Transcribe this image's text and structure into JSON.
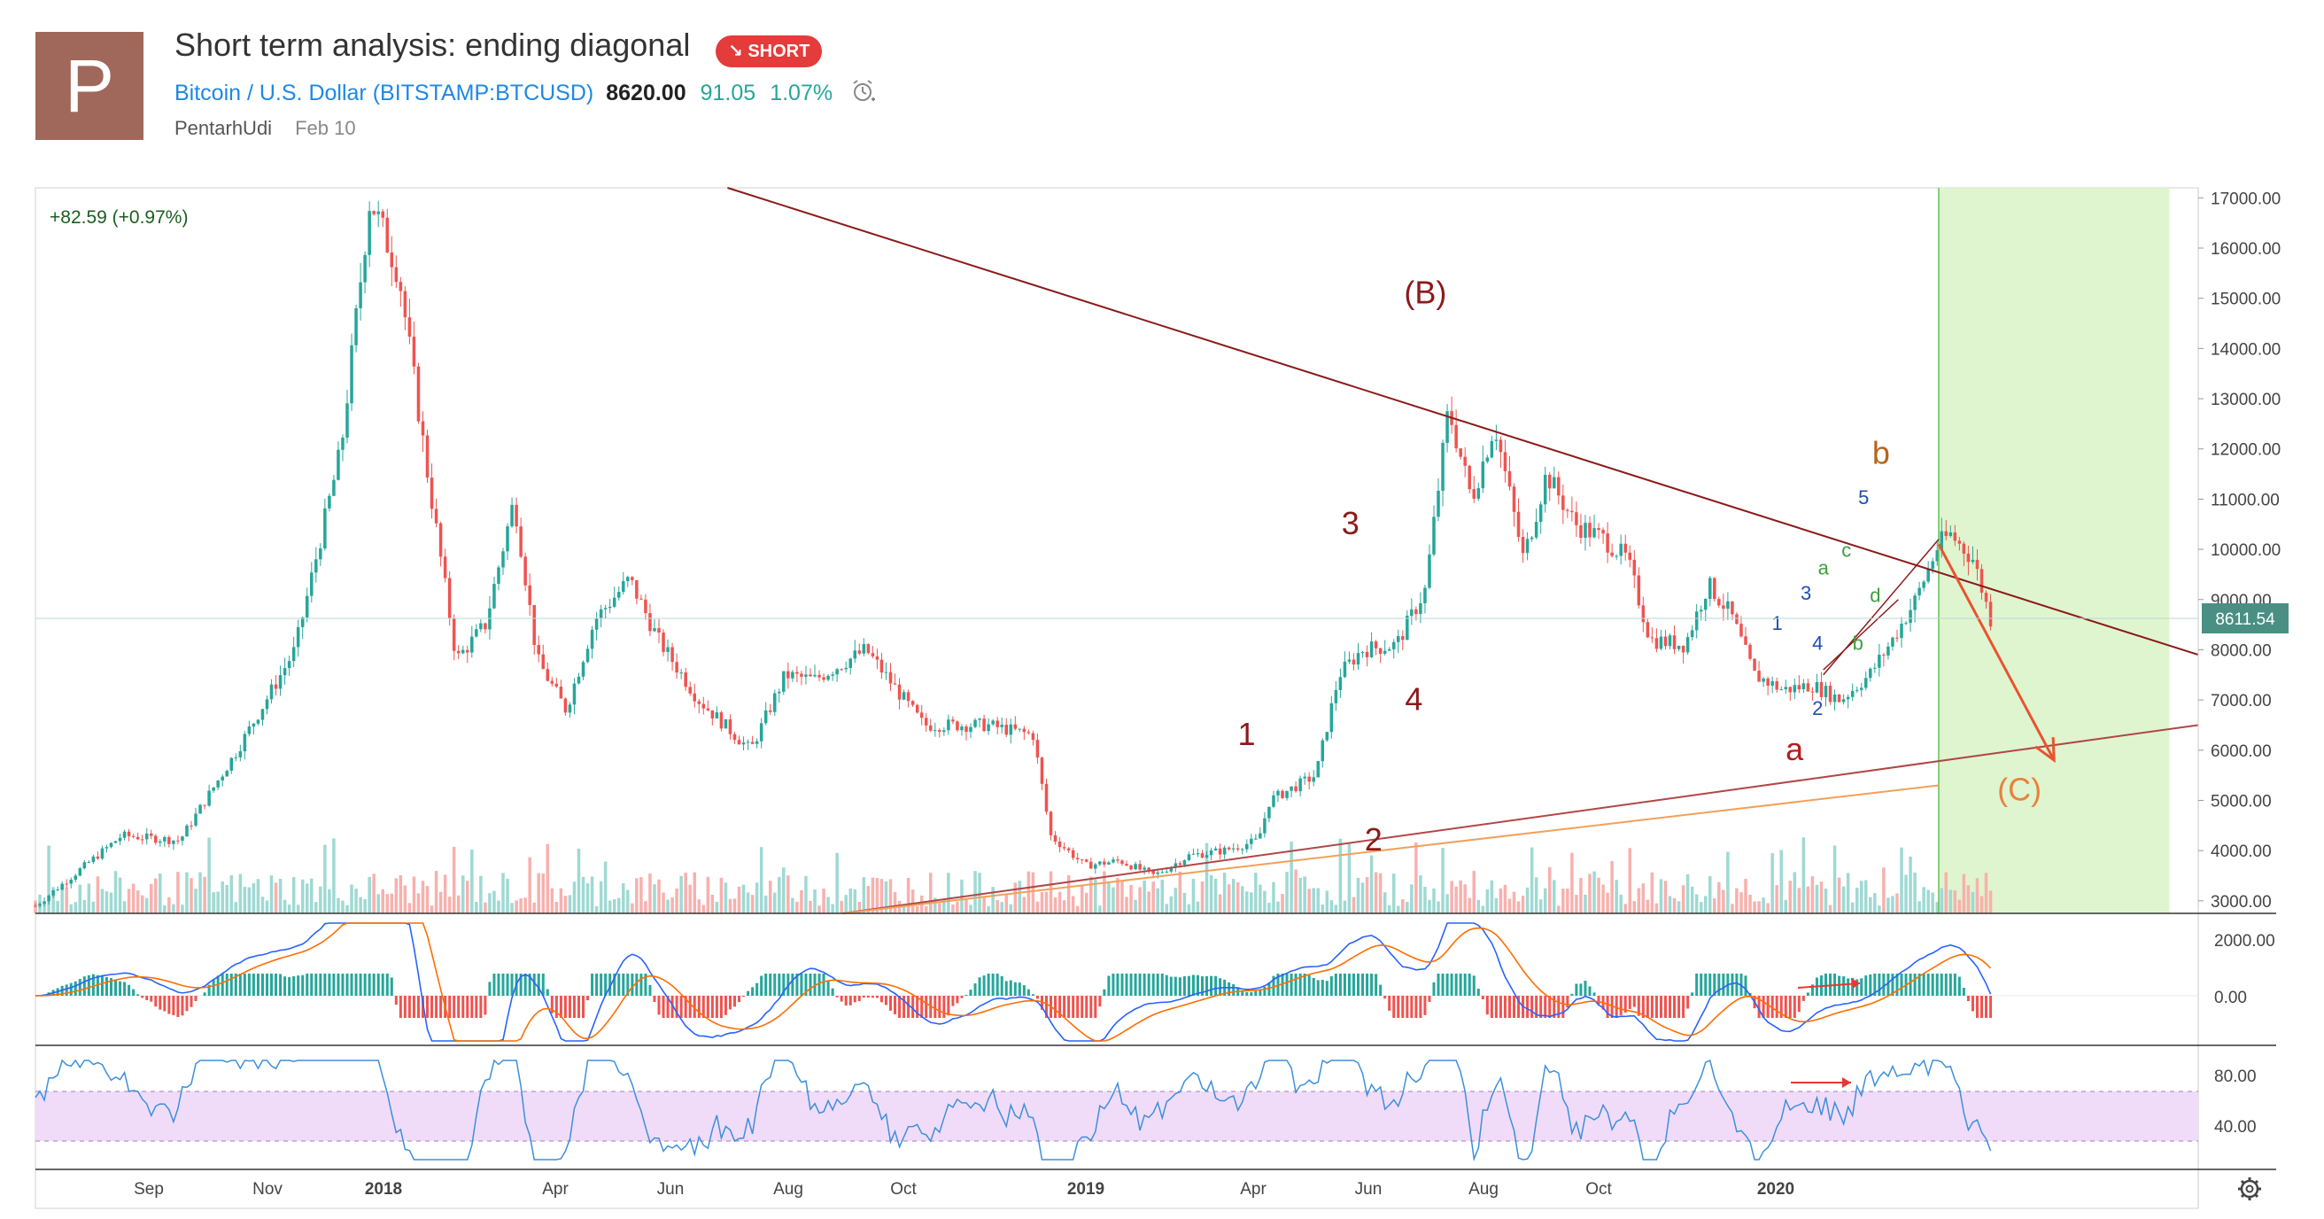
{
  "idea": {
    "avatar_letter": "P",
    "title": "Short term analysis: ending diagonal",
    "badge": "SHORT",
    "badge_icon": "arrow-down-right-icon",
    "symbol_name": "Bitcoin / U.S. Dollar",
    "symbol_code": "(BITSTAMP:BTCUSD)",
    "price": "8620.00",
    "change": "91.05",
    "change_pct": "1.07%",
    "author": "PentarhUdi",
    "date": "Feb 10"
  },
  "chart_data": {
    "type": "candlestick",
    "legend_value": "+82.59 (+0.97%)",
    "last_price_label": "8611.54",
    "last_price": 8611.54,
    "price_axis": [
      "17000.00",
      "16000.00",
      "15000.00",
      "14000.00",
      "13000.00",
      "12000.00",
      "11000.00",
      "10000.00",
      "9000.00",
      "8000.00",
      "7000.00",
      "6000.00",
      "5000.00",
      "4000.00",
      "3000.00"
    ],
    "ylim": [
      2750,
      17200
    ],
    "time_axis": [
      "Sep",
      "Nov",
      "2018",
      "Apr",
      "Jun",
      "Aug",
      "Oct",
      "2019",
      "Apr",
      "Jun",
      "Aug",
      "Oct",
      "2020"
    ],
    "price_path": [
      {
        "t": 0.0,
        "p": 2900
      },
      {
        "t": 1.5,
        "p": 4300
      },
      {
        "t": 2.5,
        "p": 4200
      },
      {
        "t": 3.5,
        "p": 6000
      },
      {
        "t": 4.5,
        "p": 8000
      },
      {
        "t": 5.3,
        "p": 12000
      },
      {
        "t": 5.8,
        "p": 17000
      },
      {
        "t": 6.3,
        "p": 15500
      },
      {
        "t": 6.8,
        "p": 11500
      },
      {
        "t": 7.3,
        "p": 7800
      },
      {
        "t": 7.8,
        "p": 8500
      },
      {
        "t": 8.3,
        "p": 11000
      },
      {
        "t": 8.7,
        "p": 7800
      },
      {
        "t": 9.2,
        "p": 6800
      },
      {
        "t": 9.7,
        "p": 8600
      },
      {
        "t": 10.3,
        "p": 9400
      },
      {
        "t": 10.8,
        "p": 8200
      },
      {
        "t": 11.5,
        "p": 7000
      },
      {
        "t": 12.4,
        "p": 6000
      },
      {
        "t": 13.0,
        "p": 7500
      },
      {
        "t": 13.5,
        "p": 7400
      },
      {
        "t": 14.4,
        "p": 8000
      },
      {
        "t": 15.4,
        "p": 6500
      },
      {
        "t": 16.5,
        "p": 6500
      },
      {
        "t": 17.3,
        "p": 6300
      },
      {
        "t": 17.6,
        "p": 4300
      },
      {
        "t": 18.2,
        "p": 3700
      },
      {
        "t": 18.8,
        "p": 3800
      },
      {
        "t": 19.4,
        "p": 3500
      },
      {
        "t": 20.0,
        "p": 3900
      },
      {
        "t": 20.6,
        "p": 4000
      },
      {
        "t": 21.2,
        "p": 4200
      },
      {
        "t": 21.4,
        "p": 5000
      },
      {
        "t": 22.2,
        "p": 5500
      },
      {
        "t": 22.6,
        "p": 7500
      },
      {
        "t": 23.0,
        "p": 8000
      },
      {
        "t": 23.6,
        "p": 8100
      },
      {
        "t": 24.1,
        "p": 9200
      },
      {
        "t": 24.5,
        "p": 12800
      },
      {
        "t": 24.9,
        "p": 11000
      },
      {
        "t": 25.3,
        "p": 12500
      },
      {
        "t": 25.8,
        "p": 9800
      },
      {
        "t": 26.2,
        "p": 11500
      },
      {
        "t": 26.7,
        "p": 10500
      },
      {
        "t": 27.2,
        "p": 10200
      },
      {
        "t": 27.6,
        "p": 9800
      },
      {
        "t": 28.0,
        "p": 8200
      },
      {
        "t": 28.6,
        "p": 8100
      },
      {
        "t": 29.0,
        "p": 9300
      },
      {
        "t": 29.4,
        "p": 8700
      },
      {
        "t": 29.8,
        "p": 7500
      },
      {
        "t": 30.3,
        "p": 7200
      },
      {
        "t": 30.8,
        "p": 7300
      },
      {
        "t": 31.3,
        "p": 7000
      },
      {
        "t": 31.8,
        "p": 7500
      },
      {
        "t": 32.2,
        "p": 8200
      },
      {
        "t": 32.6,
        "p": 9000
      },
      {
        "t": 33.0,
        "p": 10100
      },
      {
        "t": 33.2,
        "p": 10300
      },
      {
        "t": 33.6,
        "p": 9800
      },
      {
        "t": 33.9,
        "p": 8612
      }
    ],
    "trendlines": [
      {
        "name": "(B) resistance",
        "color": "#8b1a1a",
        "from": [
          12.0,
          17200
        ],
        "to": [
          37.5,
          7900
        ]
      },
      {
        "name": "lower support",
        "color": "#b24646",
        "from": [
          14.0,
          2750
        ],
        "to": [
          37.5,
          6500
        ]
      },
      {
        "name": "lower support 2",
        "color": "#f2a05a",
        "from": [
          14.0,
          2750
        ],
        "to": [
          33.0,
          5300
        ]
      }
    ],
    "projection": {
      "color": "#e8542f",
      "from": [
        33.0,
        10100
      ],
      "to": [
        35.0,
        5800
      ]
    },
    "forecast_zone": {
      "from": 33.0,
      "to": 37.0,
      "color": "#dff5cf"
    },
    "wave_labels": [
      {
        "text": "(B)",
        "t": 24.1,
        "p": 14900,
        "color": "#8b1a1a",
        "size": 36
      },
      {
        "text": "3",
        "t": 22.8,
        "p": 10300,
        "color": "#8b1a1a",
        "size": 36
      },
      {
        "text": "4",
        "t": 23.9,
        "p": 6800,
        "color": "#8b1a1a",
        "size": 36
      },
      {
        "text": "1",
        "t": 21.0,
        "p": 6100,
        "color": "#8b1a1a",
        "size": 36
      },
      {
        "text": "2",
        "t": 23.2,
        "p": 4000,
        "color": "#8b1a1a",
        "size": 36
      },
      {
        "text": "a",
        "t": 30.5,
        "p": 5800,
        "color": "#b71c1c",
        "size": 36
      },
      {
        "text": "b",
        "t": 32.0,
        "p": 11700,
        "color": "#b5651d",
        "size": 36
      },
      {
        "text": "(C)",
        "t": 34.4,
        "p": 5000,
        "color": "#e8823f",
        "size": 36
      },
      {
        "text": "5",
        "t": 31.7,
        "p": 10900,
        "color": "#1e4fb0",
        "size": 22
      },
      {
        "text": "3",
        "t": 30.7,
        "p": 9000,
        "color": "#1e4fb0",
        "size": 22
      },
      {
        "text": "1",
        "t": 30.2,
        "p": 8400,
        "color": "#1e4fb0",
        "size": 22
      },
      {
        "text": "4",
        "t": 30.9,
        "p": 8000,
        "color": "#1e4fb0",
        "size": 22
      },
      {
        "text": "2",
        "t": 30.9,
        "p": 6700,
        "color": "#1e4fb0",
        "size": 22
      },
      {
        "text": "a",
        "t": 31.0,
        "p": 9500,
        "color": "#3ca03c",
        "size": 22
      },
      {
        "text": "c",
        "t": 31.4,
        "p": 9850,
        "color": "#3ca03c",
        "size": 22
      },
      {
        "text": "d",
        "t": 31.9,
        "p": 8950,
        "color": "#3ca03c",
        "size": 22
      },
      {
        "text": "b",
        "t": 31.6,
        "p": 8000,
        "color": "#3ca03c",
        "size": 22
      }
    ],
    "macd": {
      "axis": [
        "2000.00",
        "0.00"
      ]
    },
    "rsi": {
      "axis": [
        "80.00",
        "40.00"
      ],
      "band": [
        30,
        70
      ]
    },
    "colors": {
      "up": "#26a69a",
      "down": "#ef5350",
      "volume_up": "#9fd9d3",
      "volume_down": "#f7b1ae"
    }
  },
  "toolbar": {
    "settings_icon": "gear-icon"
  }
}
